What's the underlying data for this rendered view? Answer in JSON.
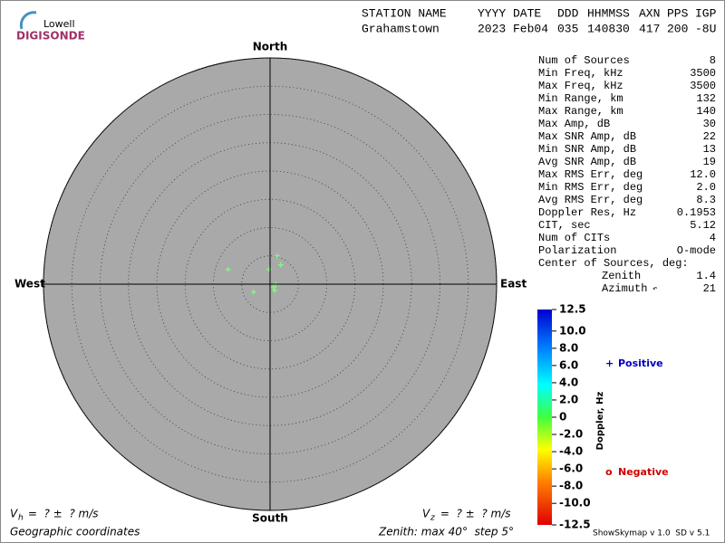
{
  "logo": {
    "line1": "Lowell",
    "line2": "DIGISONDE"
  },
  "header": {
    "labels": [
      "STATION NAME",
      "YYYY",
      "DATE",
      "DDD",
      "HHMMSS",
      "AXN",
      "PPS",
      "IGP"
    ],
    "values": [
      "Grahamstown",
      "2023",
      "Feb04",
      "035",
      "140830",
      "417",
      "200",
      "-8U"
    ]
  },
  "stats": {
    "rows": [
      [
        "Num of Sources",
        "8"
      ],
      [
        "Min Freq, kHz",
        "3500"
      ],
      [
        "Max Freq, kHz",
        "3500"
      ],
      [
        "Min Range, km",
        "132"
      ],
      [
        "Max Range, km",
        "140"
      ],
      [
        "Max Amp, dB",
        "30"
      ],
      [
        "Max SNR Amp, dB",
        "22"
      ],
      [
        "Min SNR Amp, dB",
        "13"
      ],
      [
        "Avg SNR Amp, dB",
        "19"
      ],
      [
        "Max RMS Err, deg",
        "12.0"
      ],
      [
        "Min RMS Err, deg",
        "2.0"
      ],
      [
        "Avg RMS Err, deg",
        "8.3"
      ],
      [
        "Doppler Res, Hz",
        "0.1953"
      ],
      [
        "CIT, sec",
        "5.12"
      ],
      [
        "Num of CITs",
        "4"
      ],
      [
        "Polarization",
        "O-mode"
      ]
    ],
    "center_title": "Center of Sources, deg:",
    "center_rows": [
      [
        "Zenith",
        "1.4"
      ],
      [
        "Azimuth",
        "21"
      ]
    ]
  },
  "chart_data": {
    "type": "polar-scatter",
    "directions": {
      "north": "North",
      "south": "South",
      "east": "East",
      "west": "West"
    },
    "xlim": [
      -40,
      40
    ],
    "ylim": [
      -40,
      40
    ],
    "rticks": [
      5,
      10,
      15,
      20,
      25,
      30,
      35,
      40
    ],
    "series": [
      {
        "name": "Positive",
        "color": "#7cff7c",
        "x": [
          1.3,
          1.9,
          -0.2,
          -7.4,
          1.0,
          0.6,
          0.8,
          -2.9
        ],
        "values": [
          5.0,
          3.4,
          2.6,
          2.6,
          0.0,
          -0.5,
          -1.1,
          -1.4
        ]
      }
    ],
    "colorbar": {
      "label": "Doppler, Hz",
      "lim": [
        -12.5,
        12.5
      ],
      "ticks": [
        12.5,
        {
          "value": 10,
          "label": "10.0"
        },
        {
          "value": 8,
          "label": "8.0"
        },
        {
          "value": 6,
          "label": "6.0"
        },
        {
          "value": 4,
          "label": "4.0"
        },
        {
          "value": 2,
          "label": "2.0"
        },
        0,
        {
          "value": -2,
          "label": "-2.0"
        },
        {
          "value": -4,
          "label": "-4.0"
        },
        {
          "value": -6,
          "label": "-6.0"
        },
        {
          "value": -8,
          "label": "-8.0"
        },
        {
          "value": -10,
          "label": "-10.0"
        },
        -12.5
      ]
    },
    "legend": {
      "positive": "Positive",
      "negative": "Negative"
    }
  },
  "footer": {
    "vh": {
      "symbol": "V",
      "sub": "h",
      "text": " =  ? ±  ? m/s"
    },
    "vz": {
      "symbol": "V",
      "sub": "z",
      "text": " =  ? ±  ? m/s"
    },
    "coords": "Geographic coordinates",
    "zenith": "Zenith: max 40°  step 5°",
    "version": "ShowSkymap v 1.0  SD v 5.1"
  }
}
